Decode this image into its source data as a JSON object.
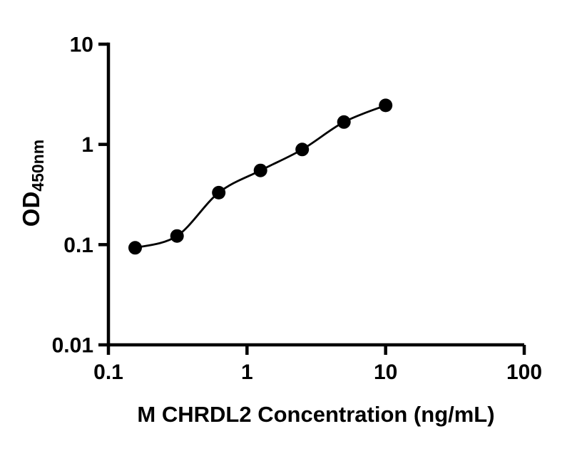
{
  "figure": {
    "background": "#ffffff"
  },
  "chart_data": {
    "type": "scatter",
    "x": [
      0.156,
      0.3125,
      0.625,
      1.25,
      2.5,
      5,
      10
    ],
    "y": [
      0.093,
      0.122,
      0.33,
      0.55,
      0.89,
      1.67,
      2.45
    ],
    "title": "",
    "xlabel": "M CHRDL2 Concentration (ng/mL)",
    "ylabel": "OD",
    "ylabel_subscript": "450nm",
    "xscale": "log",
    "yscale": "log",
    "xlim": [
      0.1,
      100
    ],
    "ylim": [
      0.01,
      10
    ],
    "x_ticks": [
      0.1,
      1,
      10,
      100
    ],
    "x_tick_labels": [
      "0.1",
      "1",
      "10",
      "100"
    ],
    "y_ticks": [
      0.01,
      0.1,
      1,
      10
    ],
    "y_tick_labels": [
      "0.01",
      "0.1",
      "1",
      "10"
    ],
    "grid": false,
    "legend": false,
    "marker": "filled-circle",
    "marker_color": "#000000",
    "line_color": "#000000",
    "axis_color": "#000000",
    "curve": "smooth-fit"
  }
}
